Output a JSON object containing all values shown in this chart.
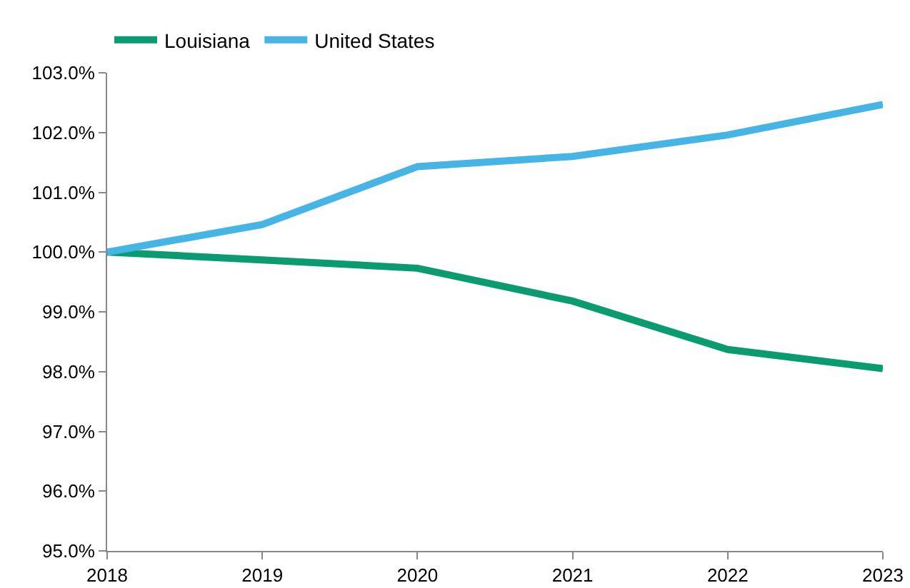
{
  "chart_data": {
    "type": "line",
    "x": [
      2018,
      2019,
      2020,
      2021,
      2022,
      2023
    ],
    "series": [
      {
        "name": "Louisiana",
        "color": "#0b9b70",
        "values": [
          100.0,
          99.87,
          99.73,
          99.18,
          98.37,
          98.05
        ]
      },
      {
        "name": "United States",
        "color": "#46b5e6",
        "values": [
          100.0,
          100.46,
          101.43,
          101.6,
          101.96,
          102.47
        ]
      }
    ],
    "xlim": [
      2018,
      2023
    ],
    "xticks": [
      2018,
      2019,
      2020,
      2021,
      2022,
      2023
    ],
    "ylim": [
      95,
      103
    ],
    "yticks": [
      {
        "value": 95,
        "label": "95.0%"
      },
      {
        "value": 96,
        "label": "96.0%"
      },
      {
        "value": 97,
        "label": "97.0%"
      },
      {
        "value": 98,
        "label": "98.0%"
      },
      {
        "value": 99,
        "label": "99.0%"
      },
      {
        "value": 100,
        "label": "100.0%"
      },
      {
        "value": 101,
        "label": "101.0%"
      },
      {
        "value": 102,
        "label": "102.0%"
      },
      {
        "value": 103,
        "label": "103.0%"
      }
    ],
    "grid": false,
    "legend": "top",
    "marker": "none",
    "line_style": "solid"
  }
}
